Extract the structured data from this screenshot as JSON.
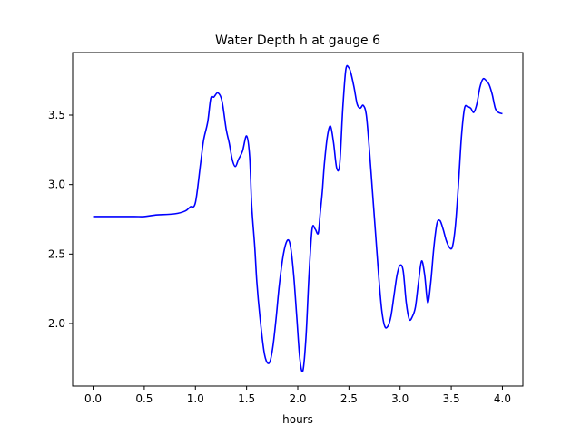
{
  "chart_data": {
    "type": "line",
    "title": "Water Depth h at gauge 6",
    "xlabel": "hours",
    "ylabel": "",
    "xlim": [
      -0.2,
      4.2
    ],
    "ylim": [
      1.55,
      3.95
    ],
    "xticks": [
      0.0,
      0.5,
      1.0,
      1.5,
      2.0,
      2.5,
      3.0,
      3.5,
      4.0
    ],
    "xtick_labels": [
      "0.0",
      "0.5",
      "1.0",
      "1.5",
      "2.0",
      "2.5",
      "3.0",
      "3.5",
      "4.0"
    ],
    "yticks": [
      2.0,
      2.5,
      3.0,
      3.5
    ],
    "ytick_labels": [
      "2.0",
      "2.5",
      "3.0",
      "3.5"
    ],
    "grid": false,
    "colors": {
      "series": "#0000ff",
      "axes": "#000000",
      "background": "#ffffff"
    },
    "series": [
      {
        "x": [
          0.0,
          0.2,
          0.4,
          0.5,
          0.6,
          0.8,
          0.9,
          0.95,
          1.0,
          1.05,
          1.08,
          1.12,
          1.15,
          1.18,
          1.22,
          1.26,
          1.3,
          1.33,
          1.36,
          1.39,
          1.42,
          1.46,
          1.5,
          1.53,
          1.55,
          1.58,
          1.6,
          1.63,
          1.67,
          1.7,
          1.73,
          1.76,
          1.79,
          1.82,
          1.86,
          1.9,
          1.93,
          1.96,
          1.99,
          2.02,
          2.05,
          2.08,
          2.11,
          2.14,
          2.17,
          2.2,
          2.22,
          2.24,
          2.26,
          2.29,
          2.32,
          2.35,
          2.38,
          2.41,
          2.44,
          2.47,
          2.5,
          2.52,
          2.55,
          2.58,
          2.61,
          2.64,
          2.67,
          2.7,
          2.73,
          2.76,
          2.79,
          2.82,
          2.85,
          2.88,
          2.91,
          2.94,
          2.97,
          3.0,
          3.03,
          3.06,
          3.09,
          3.12,
          3.15,
          3.18,
          3.21,
          3.24,
          3.27,
          3.3,
          3.33,
          3.36,
          3.39,
          3.42,
          3.45,
          3.48,
          3.51,
          3.54,
          3.57,
          3.6,
          3.63,
          3.66,
          3.69,
          3.72,
          3.75,
          3.78,
          3.81,
          3.84,
          3.87,
          3.9,
          3.93,
          3.96,
          4.0
        ],
        "y": [
          2.77,
          2.77,
          2.77,
          2.77,
          2.78,
          2.79,
          2.81,
          2.84,
          2.87,
          3.15,
          3.32,
          3.45,
          3.62,
          3.63,
          3.66,
          3.6,
          3.4,
          3.3,
          3.18,
          3.13,
          3.18,
          3.24,
          3.35,
          3.2,
          2.85,
          2.55,
          2.3,
          2.05,
          1.8,
          1.72,
          1.73,
          1.85,
          2.05,
          2.28,
          2.5,
          2.6,
          2.55,
          2.35,
          2.05,
          1.75,
          1.66,
          1.9,
          2.35,
          2.68,
          2.68,
          2.65,
          2.8,
          2.95,
          3.15,
          3.35,
          3.42,
          3.3,
          3.12,
          3.15,
          3.55,
          3.83,
          3.84,
          3.8,
          3.7,
          3.58,
          3.55,
          3.57,
          3.5,
          3.25,
          2.95,
          2.65,
          2.35,
          2.1,
          1.98,
          1.98,
          2.05,
          2.2,
          2.35,
          2.42,
          2.38,
          2.15,
          2.03,
          2.05,
          2.12,
          2.3,
          2.45,
          2.35,
          2.15,
          2.3,
          2.55,
          2.72,
          2.74,
          2.68,
          2.6,
          2.55,
          2.55,
          2.7,
          3.0,
          3.35,
          3.55,
          3.56,
          3.55,
          3.52,
          3.58,
          3.7,
          3.76,
          3.75,
          3.72,
          3.65,
          3.55,
          3.52,
          3.51
        ]
      }
    ]
  }
}
